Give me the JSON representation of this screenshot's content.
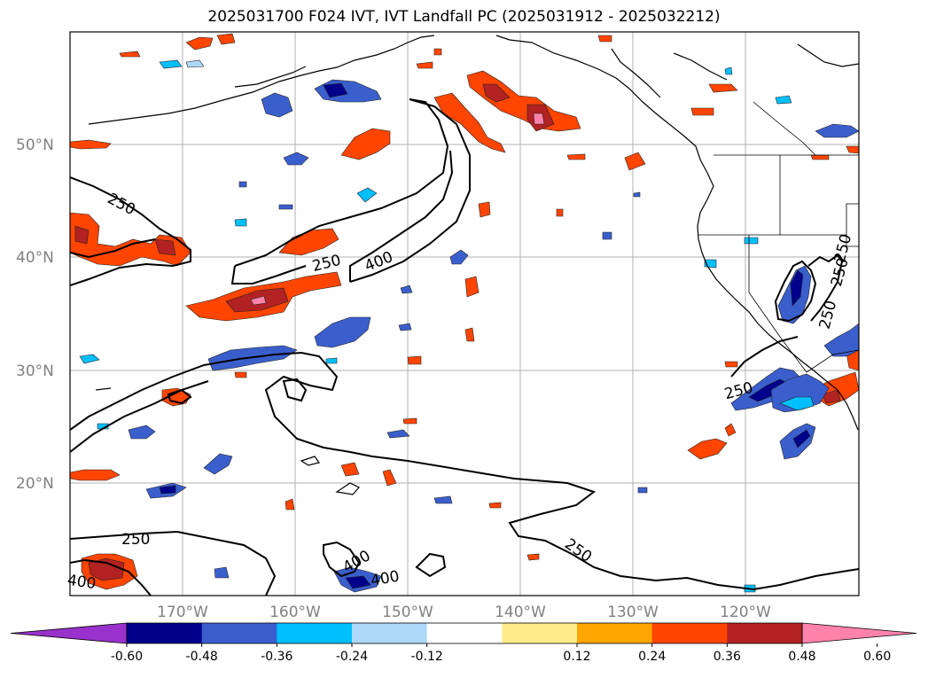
{
  "title": "2025031700 F024 IVT, IVT Landfall PC (2025031912 - 2025032212)",
  "lat_labels": [
    "50°N",
    "40°N",
    "30°N",
    "20°N"
  ],
  "lon_labels": [
    "170°W",
    "160°W",
    "150°W",
    "140°W",
    "130°W",
    "120°W"
  ],
  "colorbar": {
    "colors": [
      "#9932cc",
      "#00008b",
      "#3a5fcd",
      "#00bfff",
      "#add8f8",
      "#ffffff",
      "#ffec8b",
      "#ffa500",
      "#ff4500",
      "#b22222",
      "#ff82ab"
    ],
    "tick_labels": [
      "-0.60",
      "-0.48",
      "-0.36",
      "-0.24",
      "-0.12",
      "0.12",
      "0.24",
      "0.36",
      "0.48",
      "0.60"
    ]
  },
  "contour_labels": [
    "250",
    "250",
    "400",
    "250",
    "250",
    "250",
    "400",
    "400",
    "400",
    "250",
    "250",
    "250"
  ]
}
